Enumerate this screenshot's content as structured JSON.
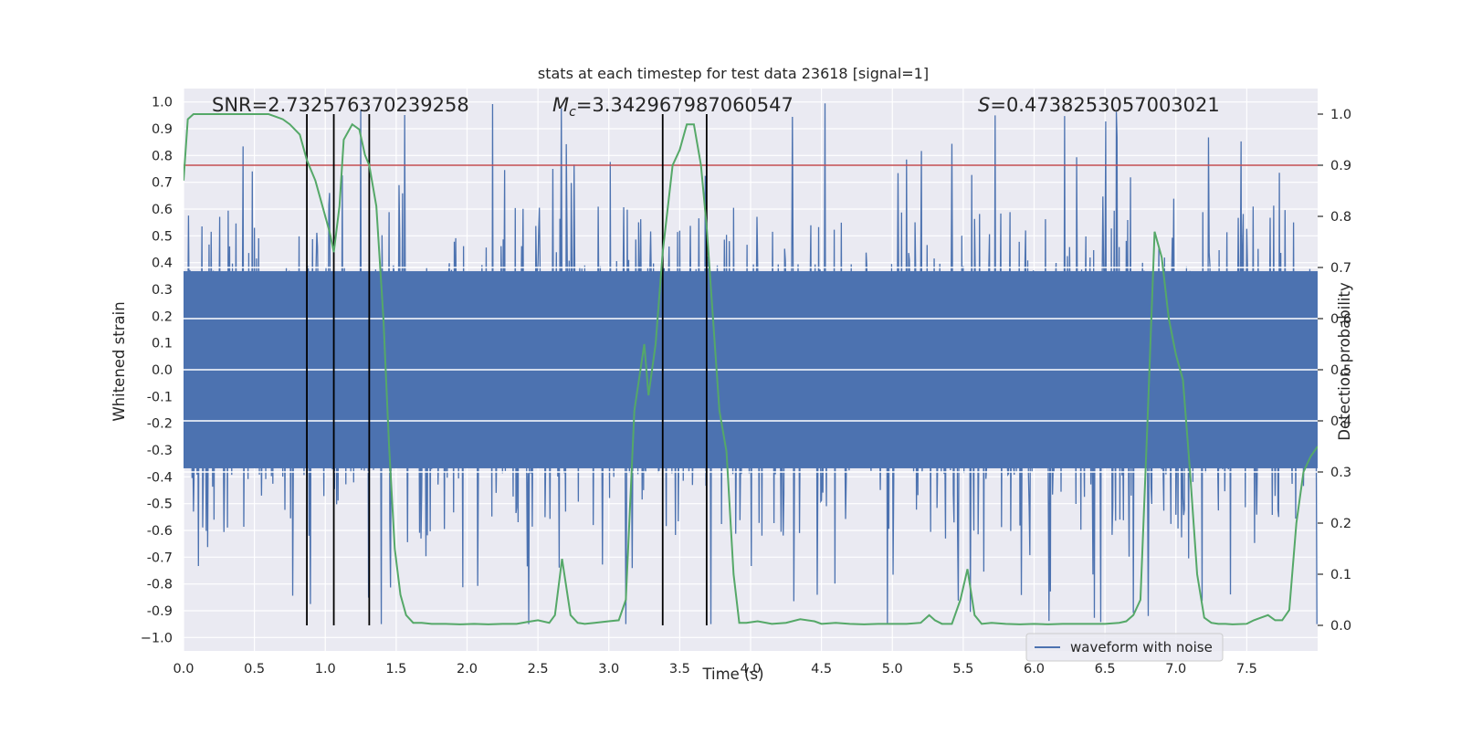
{
  "chart_data": {
    "type": "line",
    "title": "stats at each timestep for test data 23618 [signal=1]",
    "xlabel": "Time (s)",
    "ylabel_left": "Whitened strain",
    "ylabel_right": "Detection probability",
    "xlim": [
      0,
      8.0
    ],
    "ylim_left": [
      -1.05,
      1.05
    ],
    "ylim_right": [
      -0.05,
      1.05
    ],
    "x_ticks": [
      "0.0",
      "0.5",
      "1.0",
      "1.5",
      "2.0",
      "2.5",
      "3.0",
      "3.5",
      "4.0",
      "4.5",
      "5.0",
      "5.5",
      "6.0",
      "6.5",
      "7.0",
      "7.5"
    ],
    "y_ticks_left": [
      "1.0",
      "0.9",
      "0.8",
      "0.7",
      "0.6",
      "0.5",
      "0.4",
      "0.3",
      "0.2",
      "0.1",
      "0.0",
      "-0.1",
      "-0.2",
      "-0.3",
      "-0.4",
      "-0.5",
      "-0.6",
      "-0.7",
      "-0.8",
      "-0.9",
      "−1.0"
    ],
    "y_ticks_right": [
      "1.0",
      "0.9",
      "0.8",
      "0.7",
      "0.6",
      "0.5",
      "0.4",
      "0.3",
      "0.2",
      "0.1",
      "0.0"
    ],
    "grid": true,
    "background": "#eaeaf2",
    "annotations": {
      "snr": "SNR=2.732576370239258",
      "mc_symbol": "M",
      "mc_sub": "c",
      "mc_value": "=3.342967987060547",
      "s_symbol": "S",
      "s_value": "=0.4738253057003021"
    },
    "threshold": {
      "value": 0.9,
      "color": "#c44e52"
    },
    "vertical_lines": [
      0.87,
      1.06,
      1.31,
      3.38,
      3.69
    ],
    "legend": {
      "label": "waveform with noise",
      "position": "lower-right"
    },
    "series": [
      {
        "name": "waveform with noise",
        "axis": "left",
        "color": "#4c72b0",
        "samples": 1600,
        "sample_rate_hz": 200,
        "envelope": {
          "core_abs": 0.4,
          "spike_max_positive": 1.0,
          "spike_min_negative": -0.95
        }
      },
      {
        "axis": "right",
        "color": "#55a868",
        "x": [
          0.0,
          0.03,
          0.07,
          0.12,
          0.2,
          0.3,
          0.4,
          0.5,
          0.6,
          0.7,
          0.75,
          0.82,
          0.87,
          0.93,
          0.98,
          1.03,
          1.06,
          1.1,
          1.13,
          1.19,
          1.24,
          1.28,
          1.31,
          1.36,
          1.41,
          1.45,
          1.49,
          1.53,
          1.57,
          1.62,
          1.68,
          1.75,
          1.85,
          1.95,
          2.05,
          2.15,
          2.25,
          2.35,
          2.43,
          2.5,
          2.58,
          2.62,
          2.67,
          2.73,
          2.78,
          2.83,
          2.9,
          3.0,
          3.07,
          3.12,
          3.18,
          3.25,
          3.28,
          3.33,
          3.38,
          3.45,
          3.5,
          3.55,
          3.6,
          3.65,
          3.69,
          3.73,
          3.78,
          3.83,
          3.88,
          3.92,
          3.97,
          4.05,
          4.15,
          4.25,
          4.35,
          4.45,
          4.5,
          4.6,
          4.7,
          4.8,
          4.9,
          5.0,
          5.1,
          5.2,
          5.26,
          5.3,
          5.35,
          5.42,
          5.48,
          5.53,
          5.58,
          5.63,
          5.7,
          5.8,
          5.9,
          6.0,
          6.1,
          6.2,
          6.3,
          6.4,
          6.5,
          6.6,
          6.65,
          6.7,
          6.75,
          6.8,
          6.85,
          6.9,
          6.95,
          7.0,
          7.05,
          7.1,
          7.15,
          7.2,
          7.25,
          7.3,
          7.35,
          7.4,
          7.5,
          7.55,
          7.6,
          7.65,
          7.7,
          7.75,
          7.8,
          7.85,
          7.9,
          7.95,
          8.0
        ],
        "y": [
          0.87,
          0.99,
          1.0,
          1.0,
          1.0,
          1.0,
          1.0,
          1.0,
          1.0,
          0.99,
          0.98,
          0.96,
          0.91,
          0.87,
          0.82,
          0.77,
          0.73,
          0.82,
          0.95,
          0.98,
          0.97,
          0.92,
          0.9,
          0.82,
          0.6,
          0.35,
          0.15,
          0.06,
          0.02,
          0.005,
          0.005,
          0.003,
          0.003,
          0.002,
          0.003,
          0.002,
          0.003,
          0.003,
          0.007,
          0.01,
          0.005,
          0.02,
          0.13,
          0.02,
          0.005,
          0.003,
          0.005,
          0.008,
          0.01,
          0.05,
          0.42,
          0.55,
          0.45,
          0.55,
          0.73,
          0.9,
          0.93,
          0.98,
          0.98,
          0.9,
          0.78,
          0.62,
          0.42,
          0.34,
          0.1,
          0.005,
          0.005,
          0.008,
          0.003,
          0.005,
          0.012,
          0.008,
          0.003,
          0.005,
          0.003,
          0.002,
          0.003,
          0.003,
          0.003,
          0.005,
          0.02,
          0.01,
          0.003,
          0.003,
          0.05,
          0.11,
          0.02,
          0.003,
          0.005,
          0.003,
          0.002,
          0.003,
          0.002,
          0.003,
          0.003,
          0.003,
          0.003,
          0.005,
          0.008,
          0.02,
          0.05,
          0.4,
          0.77,
          0.72,
          0.6,
          0.53,
          0.48,
          0.3,
          0.1,
          0.015,
          0.005,
          0.003,
          0.003,
          0.002,
          0.003,
          0.01,
          0.015,
          0.02,
          0.01,
          0.01,
          0.03,
          0.2,
          0.3,
          0.33,
          0.35
        ]
      }
    ]
  }
}
